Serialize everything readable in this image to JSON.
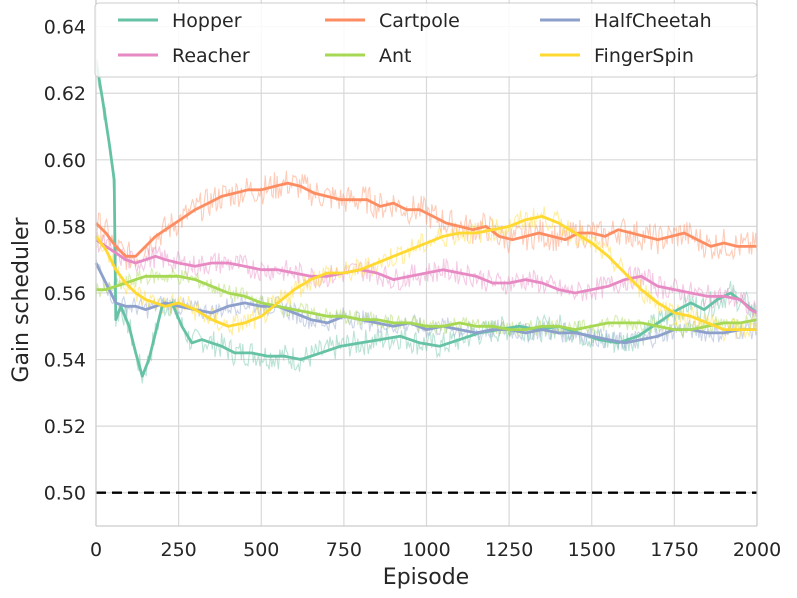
{
  "chart_data": {
    "type": "line",
    "title": "",
    "xlabel": "Episode",
    "ylabel": "Gain scheduler",
    "xlim": [
      0,
      2000
    ],
    "ylim": [
      0.49,
      0.648
    ],
    "xticks": [
      0,
      250,
      500,
      750,
      1000,
      1250,
      1500,
      1750,
      2000
    ],
    "yticks": [
      0.5,
      0.52,
      0.54,
      0.56,
      0.58,
      0.6,
      0.62,
      0.64
    ],
    "xtick_labels": [
      "0",
      "250",
      "500",
      "750",
      "1000",
      "1250",
      "1500",
      "1750",
      "2000"
    ],
    "ytick_labels": [
      "0.50",
      "0.52",
      "0.54",
      "0.56",
      "0.58",
      "0.60",
      "0.62",
      "0.64"
    ],
    "grid": true,
    "legend": {
      "placement": "top",
      "columns": 3
    },
    "reference_line": {
      "y": 0.5,
      "style": "dashed",
      "color": "#000000"
    },
    "series": [
      {
        "name": "Hopper",
        "color": "#66c2a5",
        "noise": 0.004,
        "x": [
          0,
          20,
          40,
          55,
          60,
          75,
          100,
          120,
          140,
          160,
          180,
          200,
          230,
          260,
          290,
          320,
          350,
          380,
          420,
          470,
          520,
          570,
          620,
          680,
          740,
          800,
          860,
          920,
          980,
          1040,
          1100,
          1160,
          1220,
          1280,
          1340,
          1400,
          1460,
          1520,
          1580,
          1640,
          1700,
          1760,
          1800,
          1840,
          1880,
          1920,
          1960,
          2000
        ],
        "y": [
          0.63,
          0.618,
          0.605,
          0.594,
          0.552,
          0.556,
          0.55,
          0.542,
          0.535,
          0.54,
          0.548,
          0.556,
          0.557,
          0.55,
          0.545,
          0.546,
          0.545,
          0.544,
          0.542,
          0.542,
          0.541,
          0.541,
          0.54,
          0.542,
          0.544,
          0.545,
          0.546,
          0.547,
          0.545,
          0.544,
          0.546,
          0.548,
          0.549,
          0.55,
          0.549,
          0.55,
          0.548,
          0.546,
          0.545,
          0.547,
          0.551,
          0.555,
          0.557,
          0.555,
          0.558,
          0.56,
          0.557,
          0.554
        ]
      },
      {
        "name": "Cartpole",
        "color": "#fc8d62",
        "noise": 0.0045,
        "x": [
          0,
          30,
          60,
          90,
          120,
          150,
          180,
          210,
          240,
          270,
          300,
          340,
          380,
          420,
          460,
          500,
          540,
          580,
          620,
          660,
          700,
          740,
          780,
          820,
          860,
          900,
          940,
          980,
          1020,
          1060,
          1100,
          1140,
          1180,
          1220,
          1260,
          1300,
          1340,
          1380,
          1420,
          1460,
          1500,
          1540,
          1580,
          1620,
          1660,
          1700,
          1740,
          1780,
          1820,
          1860,
          1900,
          1940,
          1980,
          2000
        ],
        "y": [
          0.581,
          0.578,
          0.574,
          0.571,
          0.571,
          0.574,
          0.577,
          0.579,
          0.581,
          0.583,
          0.585,
          0.587,
          0.589,
          0.59,
          0.591,
          0.591,
          0.592,
          0.593,
          0.592,
          0.59,
          0.589,
          0.588,
          0.588,
          0.588,
          0.586,
          0.587,
          0.585,
          0.585,
          0.583,
          0.581,
          0.58,
          0.579,
          0.58,
          0.577,
          0.576,
          0.577,
          0.578,
          0.577,
          0.576,
          0.578,
          0.578,
          0.577,
          0.579,
          0.578,
          0.577,
          0.576,
          0.577,
          0.578,
          0.576,
          0.574,
          0.575,
          0.574,
          0.574,
          0.574
        ]
      },
      {
        "name": "HalfCheetah",
        "color": "#8da0cb",
        "noise": 0.003,
        "x": [
          0,
          30,
          60,
          90,
          120,
          150,
          180,
          210,
          250,
          300,
          350,
          400,
          450,
          500,
          550,
          600,
          650,
          700,
          750,
          800,
          850,
          900,
          950,
          1000,
          1050,
          1100,
          1150,
          1200,
          1250,
          1300,
          1350,
          1400,
          1450,
          1500,
          1550,
          1600,
          1650,
          1700,
          1750,
          1800,
          1850,
          1900,
          1950,
          2000
        ],
        "y": [
          0.569,
          0.563,
          0.557,
          0.556,
          0.556,
          0.555,
          0.556,
          0.557,
          0.556,
          0.555,
          0.554,
          0.556,
          0.557,
          0.556,
          0.556,
          0.554,
          0.552,
          0.551,
          0.553,
          0.552,
          0.551,
          0.55,
          0.551,
          0.549,
          0.55,
          0.549,
          0.548,
          0.549,
          0.549,
          0.548,
          0.549,
          0.548,
          0.548,
          0.547,
          0.546,
          0.545,
          0.546,
          0.547,
          0.549,
          0.549,
          0.548,
          0.548,
          0.549,
          0.549
        ]
      },
      {
        "name": "Reacher",
        "color": "#e78ac3",
        "noise": 0.0035,
        "x": [
          0,
          30,
          60,
          90,
          120,
          150,
          180,
          210,
          250,
          300,
          350,
          400,
          450,
          500,
          550,
          600,
          650,
          700,
          750,
          800,
          850,
          900,
          950,
          1000,
          1050,
          1100,
          1150,
          1200,
          1250,
          1300,
          1350,
          1400,
          1450,
          1500,
          1550,
          1600,
          1650,
          1700,
          1750,
          1800,
          1850,
          1900,
          1950,
          1980,
          2000
        ],
        "y": [
          0.576,
          0.574,
          0.572,
          0.57,
          0.569,
          0.57,
          0.571,
          0.57,
          0.569,
          0.568,
          0.569,
          0.569,
          0.568,
          0.567,
          0.567,
          0.566,
          0.565,
          0.565,
          0.566,
          0.567,
          0.566,
          0.564,
          0.565,
          0.566,
          0.567,
          0.566,
          0.565,
          0.563,
          0.563,
          0.564,
          0.563,
          0.561,
          0.56,
          0.561,
          0.562,
          0.564,
          0.565,
          0.562,
          0.561,
          0.56,
          0.559,
          0.559,
          0.558,
          0.555,
          0.554
        ]
      },
      {
        "name": "Ant",
        "color": "#a6d854",
        "noise": 0.0025,
        "x": [
          0,
          30,
          60,
          90,
          120,
          150,
          180,
          210,
          250,
          300,
          350,
          400,
          450,
          500,
          550,
          600,
          650,
          700,
          750,
          800,
          850,
          900,
          950,
          1000,
          1050,
          1100,
          1150,
          1200,
          1250,
          1300,
          1350,
          1400,
          1450,
          1500,
          1550,
          1600,
          1650,
          1700,
          1750,
          1800,
          1850,
          1900,
          1950,
          2000
        ],
        "y": [
          0.561,
          0.561,
          0.562,
          0.563,
          0.564,
          0.565,
          0.565,
          0.565,
          0.565,
          0.564,
          0.562,
          0.56,
          0.559,
          0.557,
          0.556,
          0.555,
          0.554,
          0.553,
          0.553,
          0.552,
          0.552,
          0.551,
          0.551,
          0.55,
          0.55,
          0.551,
          0.55,
          0.55,
          0.549,
          0.549,
          0.55,
          0.55,
          0.549,
          0.55,
          0.551,
          0.551,
          0.551,
          0.55,
          0.549,
          0.549,
          0.55,
          0.551,
          0.551,
          0.552
        ]
      },
      {
        "name": "FingerSpin",
        "color": "#ffd92f",
        "noise": 0.0035,
        "x": [
          0,
          30,
          60,
          90,
          120,
          150,
          180,
          210,
          250,
          300,
          350,
          400,
          450,
          500,
          550,
          600,
          650,
          700,
          750,
          800,
          850,
          900,
          950,
          1000,
          1050,
          1100,
          1150,
          1200,
          1250,
          1300,
          1350,
          1400,
          1450,
          1500,
          1550,
          1600,
          1650,
          1700,
          1750,
          1800,
          1850,
          1900,
          1950,
          2000
        ],
        "y": [
          0.577,
          0.573,
          0.567,
          0.563,
          0.56,
          0.558,
          0.557,
          0.556,
          0.557,
          0.555,
          0.552,
          0.55,
          0.551,
          0.553,
          0.557,
          0.561,
          0.564,
          0.566,
          0.566,
          0.567,
          0.569,
          0.571,
          0.573,
          0.575,
          0.577,
          0.578,
          0.578,
          0.579,
          0.58,
          0.582,
          0.583,
          0.581,
          0.578,
          0.575,
          0.571,
          0.566,
          0.561,
          0.557,
          0.554,
          0.553,
          0.551,
          0.549,
          0.549,
          0.549
        ]
      }
    ]
  }
}
